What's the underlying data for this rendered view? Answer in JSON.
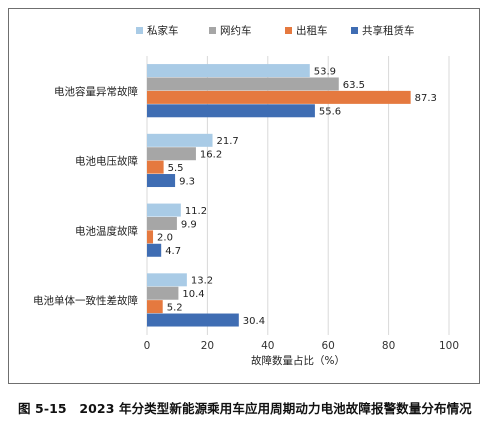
{
  "caption": "图 5-15　2023 年分类型新能源乘用车应用周期动力电池故障报警数量分布情况",
  "chart_data": {
    "type": "bar",
    "orientation": "horizontal",
    "categories": [
      "电池容量异常故障",
      "电池电压故障",
      "电池温度故障",
      "电池单体一致性差故障"
    ],
    "series": [
      {
        "name": "私家车",
        "color": "#a9cbe6",
        "values": [
          53.9,
          21.7,
          11.2,
          13.2
        ]
      },
      {
        "name": "网约车",
        "color": "#a6a6a6",
        "values": [
          63.5,
          16.2,
          9.9,
          10.4
        ]
      },
      {
        "name": "出租车",
        "color": "#e5793f",
        "values": [
          87.3,
          5.5,
          2.0,
          5.2
        ]
      },
      {
        "name": "共享租赁车",
        "color": "#3f6db3",
        "values": [
          55.6,
          9.3,
          4.7,
          30.4
        ]
      }
    ],
    "value_labels": [
      [
        "53.9",
        "21.7",
        "11.2",
        "13.2"
      ],
      [
        "63.5",
        "16.2",
        "9.9",
        "10.4"
      ],
      [
        "87.3",
        "5.5",
        "2.0",
        "5.2"
      ],
      [
        "55.6",
        "9.3",
        "4.7",
        "30.4"
      ]
    ],
    "xlabel": "故障数量占比（%）",
    "ylabel": "",
    "xlim": [
      0,
      100
    ],
    "xticks": [
      0,
      20,
      40,
      60,
      80,
      100
    ],
    "xtick_labels": [
      "0",
      "20",
      "40",
      "60",
      "80",
      "100"
    ],
    "grid": "vertical",
    "legend_position": "top"
  }
}
